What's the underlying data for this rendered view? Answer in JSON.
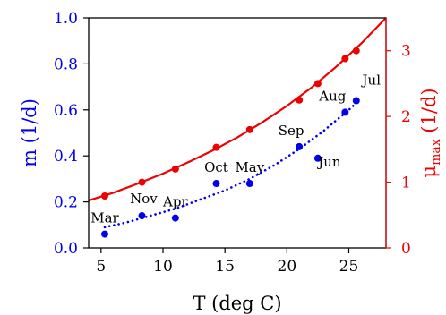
{
  "chart_data": {
    "type": "scatter",
    "title": "",
    "xlabel": "T (deg C)",
    "ylabel_left": "m (1/d)",
    "ylabel_right_main": "μ",
    "ylabel_right_sub": "max",
    "ylabel_right_unit": " (1/d)",
    "xlim": [
      4,
      28
    ],
    "ylim_left": [
      0,
      1.0
    ],
    "ylim_right": [
      0,
      3.5
    ],
    "xticks": [
      5,
      10,
      15,
      20,
      25
    ],
    "yticks_left": [
      0.0,
      0.2,
      0.4,
      0.6,
      0.8,
      1.0
    ],
    "yticks_right": [
      0,
      1,
      2,
      3
    ],
    "grid": false,
    "colors": {
      "m": "#0000ee",
      "mu": "#ee0000",
      "axis": "#000000"
    },
    "series": [
      {
        "axis": "left",
        "style": "points",
        "color": "#0000ee",
        "points": [
          {
            "x": 5.3,
            "y": 0.06,
            "label": "Mar"
          },
          {
            "x": 8.3,
            "y": 0.14,
            "label": "Nov"
          },
          {
            "x": 11.0,
            "y": 0.13,
            "label": "Apr"
          },
          {
            "x": 14.3,
            "y": 0.28,
            "label": "Oct"
          },
          {
            "x": 17.0,
            "y": 0.28,
            "label": "May"
          },
          {
            "x": 21.0,
            "y": 0.44,
            "label": "Sep"
          },
          {
            "x": 22.5,
            "y": 0.39,
            "label": "Jun"
          },
          {
            "x": 24.7,
            "y": 0.59,
            "label": "Aug"
          },
          {
            "x": 25.6,
            "y": 0.64,
            "label": "Jul"
          }
        ]
      },
      {
        "axis": "left",
        "style": "dotted-fit",
        "color": "#0000ee",
        "x": [
          5.3,
          7,
          9,
          11,
          13,
          15,
          17,
          19,
          21,
          23,
          25,
          25.6
        ],
        "y": [
          0.09,
          0.11,
          0.14,
          0.17,
          0.21,
          0.25,
          0.3,
          0.36,
          0.43,
          0.51,
          0.6,
          0.63
        ]
      },
      {
        "axis": "right",
        "style": "line",
        "color": "#ee0000",
        "x": [
          4,
          6,
          8,
          10,
          12,
          14,
          16,
          18,
          20,
          22,
          24,
          26,
          28
        ],
        "y": [
          0.72,
          0.84,
          0.98,
          1.13,
          1.3,
          1.48,
          1.68,
          1.91,
          2.16,
          2.44,
          2.76,
          3.11,
          3.5
        ]
      },
      {
        "axis": "right",
        "style": "points",
        "color": "#ee0000",
        "points": [
          {
            "x": 5.3,
            "y": 0.79
          },
          {
            "x": 8.3,
            "y": 1.0
          },
          {
            "x": 11.0,
            "y": 1.2
          },
          {
            "x": 14.3,
            "y": 1.53
          },
          {
            "x": 17.0,
            "y": 1.8
          },
          {
            "x": 21.0,
            "y": 2.25
          },
          {
            "x": 22.5,
            "y": 2.5
          },
          {
            "x": 24.7,
            "y": 2.88
          },
          {
            "x": 25.6,
            "y": 3.0
          }
        ]
      }
    ]
  }
}
